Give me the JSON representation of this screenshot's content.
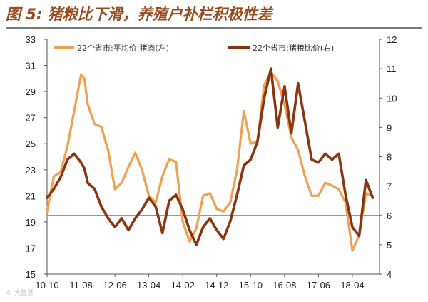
{
  "title": "图 5: 猪粮比下滑，养殖户补栏积极性差",
  "chart_data": {
    "type": "line",
    "title": "图 5: 猪粮比下滑，养殖户补栏积极性差",
    "x_tick_labels": [
      "10-10",
      "11-08",
      "12-06",
      "13-04",
      "14-02",
      "14-12",
      "15-10",
      "16-08",
      "17-06",
      "18-04"
    ],
    "left_axis": {
      "range": [
        15,
        33
      ],
      "ticks": [
        15,
        17,
        19,
        21,
        23,
        25,
        27,
        29,
        31,
        33
      ]
    },
    "right_axis": {
      "range": [
        4,
        12
      ],
      "ticks": [
        4,
        5,
        6,
        7,
        8,
        9,
        10,
        11,
        12
      ]
    },
    "reference_line_right": 6.0,
    "legend_placement": "top",
    "series": [
      {
        "name": "22个省市:平均价:猪肉(左)",
        "axis": "left",
        "color": "#f0a050",
        "x": [
          "2010-10",
          "2010-12",
          "2011-02",
          "2011-04",
          "2011-06",
          "2011-08",
          "2011-09",
          "2011-10",
          "2011-12",
          "2012-02",
          "2012-04",
          "2012-06",
          "2012-08",
          "2012-10",
          "2012-12",
          "2013-02",
          "2013-04",
          "2013-06",
          "2013-08",
          "2013-10",
          "2013-12",
          "2014-02",
          "2014-04",
          "2014-06",
          "2014-08",
          "2014-10",
          "2014-12",
          "2015-02",
          "2015-04",
          "2015-06",
          "2015-08",
          "2015-10",
          "2015-12",
          "2016-02",
          "2016-04",
          "2016-06",
          "2016-08",
          "2016-10",
          "2016-12",
          "2017-02",
          "2017-04",
          "2017-06",
          "2017-08",
          "2017-10",
          "2017-12",
          "2018-02",
          "2018-04",
          "2018-06",
          "2018-08",
          "2018-10"
        ],
        "values": [
          19.8,
          22.5,
          22.8,
          24.8,
          27.5,
          30.3,
          30.0,
          28.0,
          26.5,
          26.3,
          24.5,
          21.5,
          22.0,
          23.2,
          24.3,
          23.0,
          21.0,
          20.5,
          22.5,
          23.8,
          23.6,
          19.0,
          17.5,
          18.5,
          21.0,
          21.2,
          20.0,
          19.8,
          20.5,
          23.0,
          27.5,
          25.0,
          25.2,
          29.5,
          30.5,
          29.8,
          28.0,
          25.5,
          24.5,
          22.5,
          21.0,
          21.0,
          22.0,
          21.8,
          21.5,
          20.5,
          16.8,
          18.0,
          21.2,
          21.0
        ]
      },
      {
        "name": "22个省市:猪粮比价(右)",
        "axis": "right",
        "color": "#8b3410",
        "x": [
          "2010-10",
          "2010-12",
          "2011-02",
          "2011-04",
          "2011-06",
          "2011-08",
          "2011-09",
          "2011-10",
          "2011-12",
          "2012-02",
          "2012-04",
          "2012-06",
          "2012-08",
          "2012-10",
          "2012-12",
          "2013-02",
          "2013-04",
          "2013-06",
          "2013-08",
          "2013-10",
          "2013-12",
          "2014-02",
          "2014-04",
          "2014-06",
          "2014-08",
          "2014-10",
          "2014-12",
          "2015-02",
          "2015-04",
          "2015-06",
          "2015-08",
          "2015-10",
          "2015-12",
          "2016-02",
          "2016-04",
          "2016-06",
          "2016-08",
          "2016-10",
          "2016-12",
          "2017-02",
          "2017-04",
          "2017-06",
          "2017-08",
          "2017-10",
          "2017-12",
          "2018-02",
          "2018-04",
          "2018-06",
          "2018-08",
          "2018-10"
        ],
        "values": [
          6.6,
          6.9,
          7.3,
          7.9,
          8.1,
          7.8,
          7.6,
          7.1,
          6.9,
          6.3,
          5.9,
          5.6,
          5.9,
          5.5,
          5.9,
          6.2,
          6.6,
          6.3,
          5.4,
          6.5,
          6.7,
          6.2,
          5.5,
          5.0,
          5.6,
          5.9,
          5.5,
          5.2,
          5.8,
          6.7,
          7.7,
          7.9,
          8.5,
          10.0,
          11.0,
          9.0,
          10.4,
          8.8,
          10.5,
          9.2,
          7.9,
          7.8,
          8.1,
          7.9,
          8.1,
          6.7,
          5.6,
          5.3,
          7.2,
          6.6
        ]
      }
    ]
  }
}
